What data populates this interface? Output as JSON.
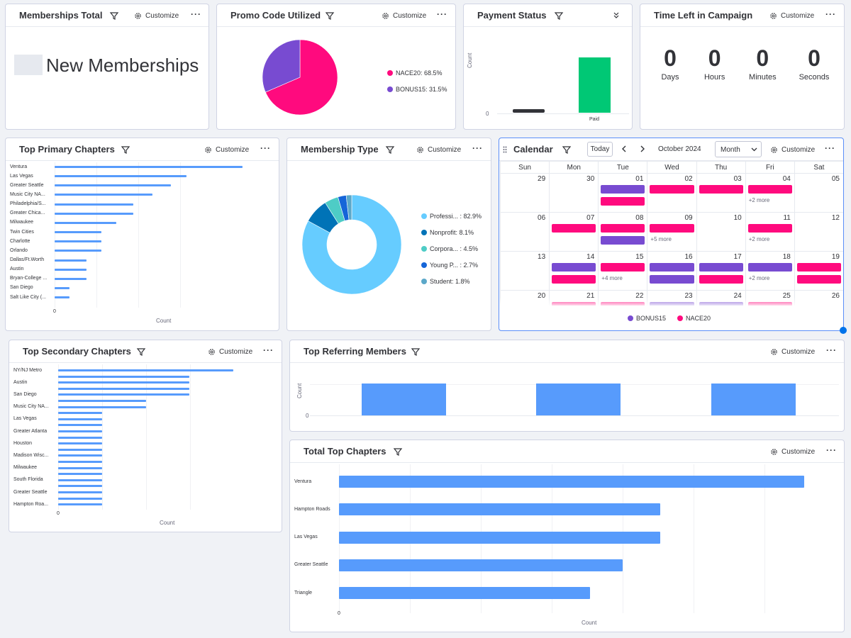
{
  "common": {
    "customize": "Customize",
    "more": "···"
  },
  "memberships_total": {
    "title": "Memberships Total",
    "value_label": "New Memberships"
  },
  "promo": {
    "title": "Promo Code Utilized",
    "legend": [
      {
        "label": "NACE20: 68.5%",
        "color": "#ff0a7e"
      },
      {
        "label": "BONUS15: 31.5%",
        "color": "#784bd1"
      }
    ]
  },
  "payment": {
    "title": "Payment Status",
    "y_label": "Count",
    "zero": "0",
    "category": "Paid"
  },
  "timer": {
    "title": "Time Left in Campaign",
    "units": [
      {
        "value": "0",
        "label": "Days"
      },
      {
        "value": "0",
        "label": "Hours"
      },
      {
        "value": "0",
        "label": "Minutes"
      },
      {
        "value": "0",
        "label": "Seconds"
      }
    ]
  },
  "primary_chapters": {
    "title": "Top Primary Chapters",
    "x_label": "Count",
    "zero": "0",
    "categories": [
      "Ventura",
      "Las Vegas",
      "Greater Seattle",
      "Music City NA...",
      "Philadelphia/S...",
      "Greater Chica...",
      "Milwaukee",
      "Twin Cities",
      "Charlotte",
      "Orlando",
      "Dallas/Ft.Worth",
      "Austin",
      "Bryan-College ...",
      "San Diego",
      "Salt Like City (..."
    ],
    "bar_fill": [
      1.0,
      0.7,
      0.62,
      0.52,
      0.42,
      0.42,
      0.33,
      0.25,
      0.25,
      0.25,
      0.17,
      0.17,
      0.17,
      0.08,
      0.08
    ]
  },
  "membership_type": {
    "title": "Membership Type",
    "legend": [
      {
        "label": "Professi... : 82.9%",
        "color": "#66ccff"
      },
      {
        "label": "Nonprofit: 8.1%",
        "color": "#0073b7"
      },
      {
        "label": "Corpora... : 4.5%",
        "color": "#4eccc6"
      },
      {
        "label": "Young P... : 2.7%",
        "color": "#1565d8"
      },
      {
        "label": "Student: 1.8%",
        "color": "#5ba8c9"
      }
    ]
  },
  "calendar": {
    "title": "Calendar",
    "today": "Today",
    "month_label": "October 2024",
    "view": "Month",
    "weekdays": [
      "Sun",
      "Mon",
      "Tue",
      "Wed",
      "Thu",
      "Fri",
      "Sat"
    ],
    "weeks": [
      [
        {
          "d": "29",
          "ev": []
        },
        {
          "d": "30",
          "ev": []
        },
        {
          "d": "01",
          "ev": [
            "b",
            "n"
          ]
        },
        {
          "d": "02",
          "ev": [
            "n"
          ]
        },
        {
          "d": "03",
          "ev": [
            "n"
          ]
        },
        {
          "d": "04",
          "ev": [
            "n"
          ],
          "more": "+2 more"
        },
        {
          "d": "05",
          "ev": []
        }
      ],
      [
        {
          "d": "06",
          "ev": []
        },
        {
          "d": "07",
          "ev": [
            "n"
          ]
        },
        {
          "d": "08",
          "ev": [
            "n",
            "b"
          ]
        },
        {
          "d": "09",
          "ev": [
            "n"
          ],
          "more": "+5 more"
        },
        {
          "d": "10",
          "ev": []
        },
        {
          "d": "11",
          "ev": [
            "n"
          ],
          "more": "+2 more"
        },
        {
          "d": "12",
          "ev": []
        }
      ],
      [
        {
          "d": "13",
          "ev": []
        },
        {
          "d": "14",
          "ev": [
            "b",
            "n"
          ]
        },
        {
          "d": "15",
          "ev": [
            "n"
          ],
          "more": "+4 more"
        },
        {
          "d": "16",
          "ev": [
            "b",
            "b"
          ]
        },
        {
          "d": "17",
          "ev": [
            "b",
            "n"
          ]
        },
        {
          "d": "18",
          "ev": [
            "b"
          ],
          "more": "+2 more"
        },
        {
          "d": "19",
          "ev": [
            "n",
            "n"
          ]
        }
      ],
      [
        {
          "d": "20",
          "ev": []
        },
        {
          "d": "21",
          "ev": [
            "n"
          ]
        },
        {
          "d": "22",
          "ev": [
            "n"
          ]
        },
        {
          "d": "23",
          "ev": [
            "b"
          ]
        },
        {
          "d": "24",
          "ev": [
            "b"
          ]
        },
        {
          "d": "25",
          "ev": [
            "n"
          ]
        },
        {
          "d": "26",
          "ev": []
        }
      ]
    ],
    "legend": [
      {
        "label": "BONUS15",
        "color": "#784bd1"
      },
      {
        "label": "NACE20",
        "color": "#ff0a7e"
      }
    ]
  },
  "secondary_chapters": {
    "title": "Top Secondary Chapters",
    "x_label": "Count",
    "zero": "0",
    "labels": [
      "NY/NJ Metro",
      "Austin",
      "San Diego",
      "Music City NA...",
      "Las Vegas",
      "Greater Atlanta",
      "Houston",
      "Madison Wisc...",
      "Milwaukee",
      "South Florida",
      "Greater Seattle",
      "Hampton Roa..."
    ],
    "bar_fill": [
      1.0,
      0.75,
      0.75,
      0.75,
      0.75,
      0.5,
      0.5,
      0.25,
      0.25,
      0.25,
      0.25,
      0.25,
      0.25,
      0.25,
      0.25,
      0.25,
      0.25,
      0.25,
      0.25,
      0.25,
      0.25,
      0.25,
      0.25
    ]
  },
  "referring": {
    "title": "Top Referring Members",
    "y_label": "Count",
    "zero": "0"
  },
  "total_chapters": {
    "title": "Total Top Chapters",
    "x_label": "Count",
    "zero": "0",
    "categories": [
      "Ventura",
      "Hampton Roads",
      "Las Vegas",
      "Greater Seattle",
      "Triangle"
    ],
    "bar_fill": [
      1.0,
      0.69,
      0.69,
      0.61,
      0.54
    ]
  },
  "chart_data": [
    {
      "type": "pie",
      "title": "Promo Code Utilized",
      "labels": [
        "NACE20",
        "BONUS15"
      ],
      "values": [
        68.5,
        31.5
      ]
    },
    {
      "type": "pie",
      "title": "Membership Type",
      "labels": [
        "Professi...",
        "Nonprofit",
        "Corpora...",
        "Young P...",
        "Student"
      ],
      "values": [
        82.9,
        8.1,
        4.5,
        2.7,
        1.8
      ]
    },
    {
      "type": "bar",
      "title": "Payment Status",
      "ylabel": "Count",
      "categories": [
        "",
        "Paid"
      ],
      "values": [
        0.07,
        1.0
      ]
    }
  ]
}
